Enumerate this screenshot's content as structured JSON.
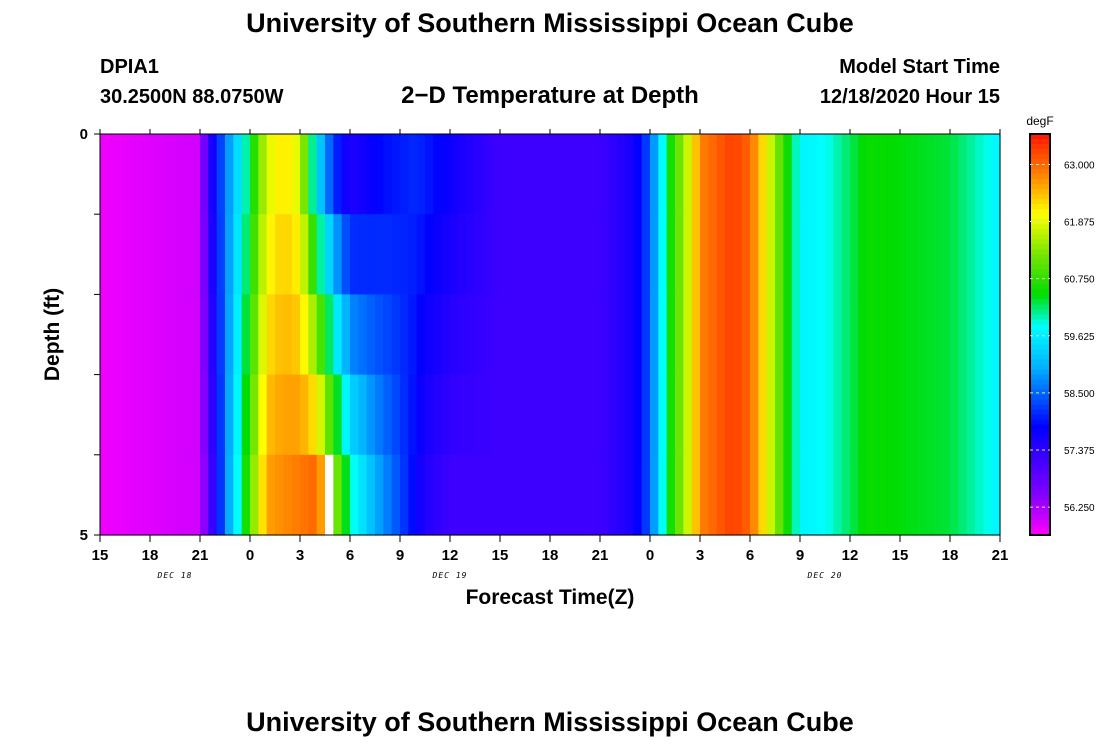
{
  "header": {
    "title": "University of Southern Mississippi Ocean Cube",
    "station_id": "DPIA1",
    "station_coords": "30.2500N 88.0750W",
    "plot_title": "2−D Temperature at Depth",
    "model_start_label": "Model Start Time",
    "model_start_value": "12/18/2020 Hour 15"
  },
  "footer": {
    "title": "University of Southern Mississippi Ocean Cube"
  },
  "chart_data": {
    "type": "heatmap",
    "title": "2−D Temperature at Depth",
    "xlabel": "Forecast Time(Z)",
    "ylabel": "Depth (ft)",
    "x_tick_labels": [
      "15",
      "18",
      "21",
      "0",
      "3",
      "6",
      "9",
      "12",
      "15",
      "18",
      "21",
      "0",
      "3",
      "6",
      "9",
      "12",
      "15",
      "18",
      "21"
    ],
    "date_labels": [
      {
        "text": "DEC 18",
        "hours_from_start": 4.5
      },
      {
        "text": "DEC 19",
        "hours_from_start": 21
      },
      {
        "text": "DEC 20",
        "hours_from_start": 43.5
      }
    ],
    "x_range_hours": [
      0,
      54
    ],
    "y_range_ft": [
      0,
      5
    ],
    "y_tick_labels": [
      "0",
      "5"
    ],
    "depth_levels": 5,
    "colorbar": {
      "unit": "degF",
      "min": 55.7,
      "max": 63.6,
      "tick_values": [
        56.25,
        57.375,
        58.5,
        59.625,
        60.75,
        61.875,
        63.0
      ],
      "tick_labels": [
        "56.250",
        "57.375",
        "58.500",
        "59.625",
        "60.750",
        "61.875",
        "63.000"
      ]
    },
    "surface_profile_degF": [
      [
        0,
        55.8
      ],
      [
        6,
        56.0
      ],
      [
        6.5,
        57.3
      ],
      [
        7.5,
        58.6
      ],
      [
        9,
        60.3
      ],
      [
        10,
        61.8
      ],
      [
        11,
        62.2
      ],
      [
        12,
        61.8
      ],
      [
        13,
        59.5
      ],
      [
        14,
        58.2
      ],
      [
        15,
        57.5
      ],
      [
        17,
        57.9
      ],
      [
        19,
        58.1
      ],
      [
        21,
        57.7
      ],
      [
        24,
        57.2
      ],
      [
        30,
        57.2
      ],
      [
        32,
        57.6
      ],
      [
        33,
        58.4
      ],
      [
        33.5,
        59.3
      ],
      [
        34,
        60.3
      ],
      [
        35.5,
        62.0
      ],
      [
        36,
        62.8
      ],
      [
        38,
        63.3
      ],
      [
        39,
        63.0
      ],
      [
        40,
        62.0
      ],
      [
        41,
        60.8
      ],
      [
        42,
        59.7
      ],
      [
        43.5,
        59.8
      ],
      [
        46,
        60.5
      ],
      [
        51,
        60.3
      ],
      [
        54,
        59.7
      ]
    ],
    "deep_profile_degF": [
      [
        0,
        55.8
      ],
      [
        6,
        56.0
      ],
      [
        7.5,
        58.6
      ],
      [
        8.5,
        60.2
      ],
      [
        10,
        62.6
      ],
      [
        13,
        63.0
      ],
      [
        15,
        60.0
      ],
      [
        16.5,
        59.0
      ],
      [
        18,
        58.3
      ],
      [
        19.5,
        57.5
      ],
      [
        21,
        57.2
      ],
      [
        30,
        57.2
      ],
      [
        32,
        57.6
      ],
      [
        33,
        58.4
      ],
      [
        34,
        60.3
      ],
      [
        35.5,
        62.0
      ],
      [
        36,
        62.8
      ],
      [
        38,
        63.3
      ],
      [
        39,
        63.0
      ],
      [
        40,
        62.0
      ],
      [
        41,
        60.8
      ],
      [
        42,
        59.7
      ],
      [
        43.5,
        59.8
      ],
      [
        46,
        60.5
      ],
      [
        51,
        60.3
      ],
      [
        54,
        59.7
      ]
    ],
    "missing_cells": [
      {
        "hours_from_start": 13.5,
        "depth_level": 5
      }
    ]
  },
  "colors": {
    "axis": "#000000",
    "missing": "#ffffff",
    "dashed_ticks": "#dddddd"
  }
}
